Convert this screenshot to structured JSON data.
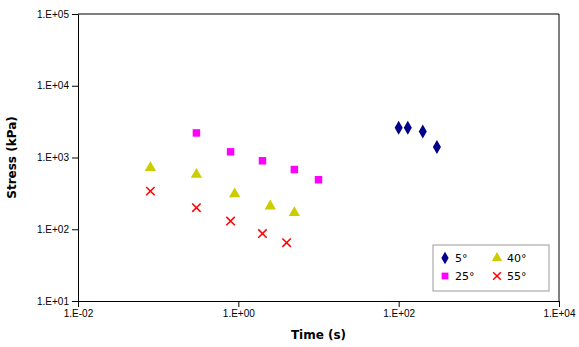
{
  "chart_data": {
    "type": "scatter",
    "xlabel": "Time (s)",
    "ylabel": "Stress (kPa)",
    "log": true,
    "grid": false,
    "legend": "lower right",
    "xlim": [
      0.01,
      10000
    ],
    "ylim": [
      10,
      100000
    ],
    "xticks": [
      {
        "value": 0.01,
        "label": "1.E-02"
      },
      {
        "value": 1,
        "label": "1.E+00"
      },
      {
        "value": 100,
        "label": "1.E+02"
      },
      {
        "value": 10000,
        "label": "1.E+04"
      }
    ],
    "yticks": [
      {
        "value": 10,
        "label": "1.E+01"
      },
      {
        "value": 100,
        "label": "1.E+02"
      },
      {
        "value": 1000,
        "label": "1.E+03"
      },
      {
        "value": 10000,
        "label": "1.E+04"
      },
      {
        "value": 100000,
        "label": "1.E+05"
      }
    ],
    "series": [
      {
        "name": "5°",
        "color": "#00008B",
        "marker": "diamond",
        "x": [
          100,
          130,
          200,
          300
        ],
        "values": [
          2600,
          2600,
          2300,
          1400
        ]
      },
      {
        "name": "25°",
        "color": "#FF00FF",
        "marker": "square",
        "x": [
          0.3,
          0.8,
          2.0,
          5.0,
          10.0
        ],
        "values": [
          2200,
          1200,
          900,
          680,
          490
        ]
      },
      {
        "name": "40°",
        "color": "#CCCC00",
        "marker": "triangle",
        "x": [
          0.08,
          0.3,
          0.9,
          2.5,
          5.0
        ],
        "values": [
          720,
          580,
          310,
          210,
          170
        ]
      },
      {
        "name": "55°",
        "color": "#FF0000",
        "marker": "x",
        "x": [
          0.08,
          0.3,
          0.8,
          2.0,
          4.0
        ],
        "values": [
          340,
          200,
          130,
          87,
          65
        ]
      }
    ]
  }
}
